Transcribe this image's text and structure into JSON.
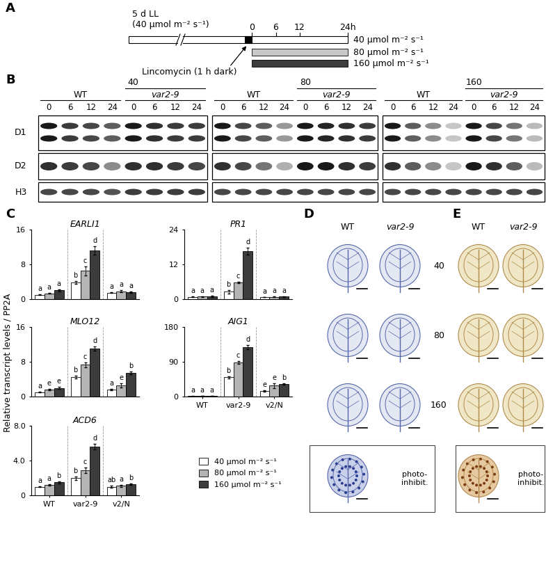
{
  "panel_labels": [
    "A",
    "B",
    "C",
    "D",
    "E"
  ],
  "timeline": {
    "pre_text": "5 d LL",
    "pre_light": "(40 µmol m⁻² s⁻¹)",
    "ticks": [
      {
        "value": 0,
        "label": "0"
      },
      {
        "value": 6,
        "label": "6"
      },
      {
        "value": 12,
        "label": "12"
      },
      {
        "value": 24,
        "label": "24h"
      }
    ],
    "treatment": "Lincomycin (1 h dark)",
    "conditions": [
      {
        "label": "40 µmol m⁻² s⁻¹",
        "color": "#ffffff"
      },
      {
        "label": "80 µmol m⁻² s⁻¹",
        "color": "#c8c8c8"
      },
      {
        "label": "160 µmol m⁻² s⁻¹",
        "color": "#3c3c3c"
      }
    ]
  },
  "western_blots": {
    "genotypes": [
      "WT",
      "var2-9"
    ],
    "times": [
      0,
      6,
      12,
      24
    ],
    "proteins": [
      "D1",
      "D2",
      "H3"
    ],
    "blots": [
      {
        "light": 40,
        "bands": {
          "D1": [
            1.0,
            0.85,
            0.8,
            0.7,
            1.0,
            0.9,
            0.85,
            0.85
          ],
          "D2": [
            0.9,
            0.85,
            0.8,
            0.5,
            0.9,
            0.9,
            0.85,
            0.8
          ],
          "H3": [
            0.8,
            0.8,
            0.8,
            0.75,
            0.85,
            0.85,
            0.85,
            0.85
          ]
        }
      },
      {
        "light": 80,
        "bands": {
          "D1": [
            1.0,
            0.8,
            0.7,
            0.45,
            1.0,
            0.95,
            0.9,
            0.85
          ],
          "D2": [
            0.9,
            0.8,
            0.6,
            0.35,
            1.0,
            1.0,
            0.9,
            0.85
          ],
          "H3": [
            0.8,
            0.8,
            0.8,
            0.8,
            0.8,
            0.8,
            0.8,
            0.8
          ]
        }
      },
      {
        "light": 160,
        "bands": {
          "D1": [
            1.0,
            0.7,
            0.5,
            0.25,
            1.0,
            0.8,
            0.6,
            0.3
          ],
          "D2": [
            0.9,
            0.7,
            0.5,
            0.25,
            1.0,
            0.9,
            0.7,
            0.3
          ],
          "H3": [
            0.8,
            0.8,
            0.8,
            0.8,
            0.8,
            0.8,
            0.8,
            0.8
          ]
        }
      }
    ]
  },
  "shared_ylabel": "Relative transcript levels / PP2A",
  "chart_data": [
    {
      "type": "bar",
      "title": "EARLI1",
      "categories": [
        null,
        null,
        null
      ],
      "ylim": [
        0,
        16
      ],
      "yticks": [
        0,
        8,
        16
      ],
      "series": [
        {
          "name": "40 µmol m⁻² s⁻¹",
          "color": "#ffffff",
          "values": [
            1.0,
            3.8,
            1.5
          ],
          "errors": [
            0.1,
            0.3,
            0.1
          ],
          "letters": [
            "a",
            "b",
            "a"
          ]
        },
        {
          "name": "80 µmol m⁻² s⁻¹",
          "color": "#b4b4b4",
          "values": [
            1.3,
            6.5,
            1.8
          ],
          "errors": [
            0.1,
            1.0,
            0.2
          ],
          "letters": [
            "a",
            "c",
            "a"
          ]
        },
        {
          "name": "160 µmol m⁻² s⁻¹",
          "color": "#3c3c3c",
          "values": [
            2.0,
            11.2,
            1.6
          ],
          "errors": [
            0.2,
            1.0,
            0.2
          ],
          "letters": [
            "a",
            "d",
            "a"
          ]
        }
      ]
    },
    {
      "type": "bar",
      "title": "PR1",
      "categories": [
        null,
        null,
        null
      ],
      "ylim": [
        0,
        24
      ],
      "yticks": [
        0,
        12,
        24
      ],
      "series": [
        {
          "name": "40 µmol m⁻² s⁻¹",
          "color": "#ffffff",
          "values": [
            0.8,
            2.6,
            0.7
          ],
          "errors": [
            0.1,
            0.6,
            0.1
          ],
          "letters": [
            "a",
            "b",
            "a"
          ]
        },
        {
          "name": "80 µmol m⁻² s⁻¹",
          "color": "#b4b4b4",
          "values": [
            0.9,
            5.8,
            0.8
          ],
          "errors": [
            0.1,
            0.3,
            0.1
          ],
          "letters": [
            "a",
            "c",
            "a"
          ]
        },
        {
          "name": "160 µmol m⁻² s⁻¹",
          "color": "#3c3c3c",
          "values": [
            1.0,
            16.5,
            0.9
          ],
          "errors": [
            0.2,
            1.2,
            0.1
          ],
          "letters": [
            "a",
            "d",
            "a"
          ]
        }
      ]
    },
    {
      "type": "bar",
      "title": "MLO12",
      "categories": [
        null,
        null,
        null
      ],
      "ylim": [
        0,
        16
      ],
      "yticks": [
        0,
        8,
        16
      ],
      "series": [
        {
          "name": "40 µmol m⁻² s⁻¹",
          "color": "#ffffff",
          "values": [
            1.0,
            4.5,
            1.6
          ],
          "errors": [
            0.1,
            0.3,
            0.2
          ],
          "letters": [
            "a",
            "b",
            "a"
          ]
        },
        {
          "name": "80 µmol m⁻² s⁻¹",
          "color": "#b4b4b4",
          "values": [
            1.6,
            7.3,
            2.6
          ],
          "errors": [
            0.2,
            0.6,
            0.5
          ],
          "letters": [
            "e",
            "c",
            "e"
          ]
        },
        {
          "name": "160 µmol m⁻² s⁻¹",
          "color": "#3c3c3c",
          "values": [
            2.0,
            11.0,
            5.5
          ],
          "errors": [
            0.2,
            0.5,
            0.3
          ],
          "letters": [
            "e",
            "d",
            "b"
          ]
        }
      ]
    },
    {
      "type": "bar",
      "title": "AIG1",
      "categories": [
        "WT",
        "var2-9",
        "v2/N"
      ],
      "ylim": [
        0,
        180
      ],
      "yticks": [
        0,
        90,
        180
      ],
      "series": [
        {
          "name": "40 µmol m⁻² s⁻¹",
          "color": "#ffffff",
          "values": [
            1.0,
            50,
            15
          ],
          "errors": [
            0.2,
            3,
            2
          ],
          "letters": [
            "a",
            "b",
            "e"
          ]
        },
        {
          "name": "80 µmol m⁻² s⁻¹",
          "color": "#b4b4b4",
          "values": [
            1.5,
            88,
            28
          ],
          "errors": [
            0.3,
            4,
            6
          ],
          "letters": [
            "a",
            "c",
            "e"
          ]
        },
        {
          "name": "160 µmol m⁻² s⁻¹",
          "color": "#3c3c3c",
          "values": [
            2.0,
            128,
            32
          ],
          "errors": [
            0.3,
            5,
            2
          ],
          "letters": [
            "a",
            "d",
            "b"
          ]
        }
      ]
    },
    {
      "type": "bar",
      "title": "ACD6",
      "categories": [
        "WT",
        "var2-9",
        "v2/N"
      ],
      "ylim": [
        0,
        8.0
      ],
      "yticks": [
        0,
        4.0,
        8.0
      ],
      "series": [
        {
          "name": "40 µmol m⁻² s⁻¹",
          "color": "#ffffff",
          "values": [
            1.0,
            2.0,
            1.0
          ],
          "errors": [
            0.05,
            0.2,
            0.1
          ],
          "letters": [
            "a",
            "b",
            "ab"
          ]
        },
        {
          "name": "80 µmol m⁻² s⁻¹",
          "color": "#b4b4b4",
          "values": [
            1.2,
            2.9,
            1.1
          ],
          "errors": [
            0.1,
            0.3,
            0.1
          ],
          "letters": [
            "a",
            "c",
            "a"
          ]
        },
        {
          "name": "160 µmol m⁻² s⁻¹",
          "color": "#3c3c3c",
          "values": [
            1.5,
            5.6,
            1.3
          ],
          "errors": [
            0.1,
            0.3,
            0.1
          ],
          "letters": [
            "b",
            "d",
            "b"
          ]
        }
      ]
    }
  ],
  "staining": {
    "columns": [
      "WT",
      "var2-9"
    ],
    "rows": [
      40,
      80,
      160
    ],
    "photoinhibition_label": "photo-\ninhibit."
  }
}
